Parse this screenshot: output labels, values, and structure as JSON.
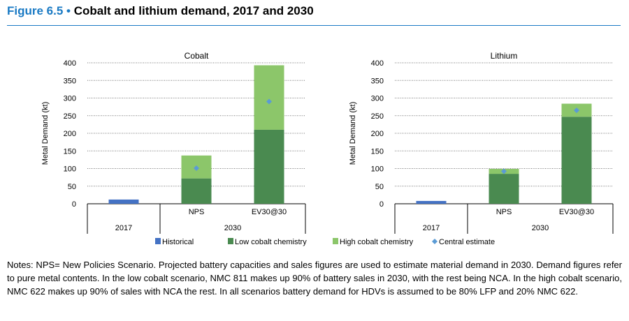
{
  "header": {
    "figure_label": "Figure 6.5",
    "bullet": "•",
    "title": "Cobalt and lithium demand, 2017 and 2030"
  },
  "colors": {
    "historical": "#4472c4",
    "low": "#4a8a50",
    "high": "#8cc66a",
    "central": "#5b9bd5",
    "title_blue": "#1a7ac4"
  },
  "chart_data": [
    {
      "type": "bar",
      "stacked": true,
      "title": "Cobalt",
      "ylabel": "Metal Demand (kt)",
      "ylim": [
        0,
        400
      ],
      "yticks": [
        0,
        50,
        100,
        150,
        200,
        250,
        300,
        350,
        400
      ],
      "grid": "horizontal dotted",
      "categories": [
        "2017",
        "NPS",
        "EV30@30"
      ],
      "groups": [
        {
          "label": "2017",
          "span": 1
        },
        {
          "label": "2030",
          "span": 2
        }
      ],
      "series": [
        {
          "name": "Historical",
          "values": [
            12,
            null,
            null
          ]
        },
        {
          "name": "Low cobalt chemistry",
          "values": [
            null,
            72,
            210
          ]
        },
        {
          "name": "High cobalt chemistry",
          "values": [
            null,
            65,
            183
          ]
        },
        {
          "name": "Central estimate",
          "type": "marker",
          "values": [
            null,
            101,
            290
          ]
        }
      ]
    },
    {
      "type": "bar",
      "stacked": true,
      "title": "Lithium",
      "ylabel": "Metal Demand (kt)",
      "ylim": [
        0,
        400
      ],
      "yticks": [
        0,
        50,
        100,
        150,
        200,
        250,
        300,
        350,
        400
      ],
      "grid": "horizontal dotted",
      "categories": [
        "2017",
        "NPS",
        "EV30@30"
      ],
      "groups": [
        {
          "label": "2017",
          "span": 1
        },
        {
          "label": "2030",
          "span": 2
        }
      ],
      "series": [
        {
          "name": "Historical",
          "values": [
            8,
            null,
            null
          ]
        },
        {
          "name": "Low cobalt chemistry",
          "values": [
            null,
            85,
            247
          ]
        },
        {
          "name": "High cobalt chemistry",
          "values": [
            null,
            14,
            37
          ]
        },
        {
          "name": "Central estimate",
          "type": "marker",
          "values": [
            null,
            92,
            265
          ]
        }
      ]
    }
  ],
  "legend": {
    "placement": "bottom",
    "items": [
      "Historical",
      "Low cobalt chemistry",
      "High cobalt chemistry",
      "Central estimate"
    ]
  },
  "notes": "Notes: NPS= New Policies Scenario. Projected battery capacities and sales figures are used to estimate material demand in 2030. Demand figures refer to pure metal contents. In the low cobalt scenario, NMC 811 makes up 90% of battery sales in 2030, with the rest being NCA. In the high cobalt scenario, NMC 622 makes up 90% of sales with NCA the rest. In all scenarios battery demand for HDVs is assumed to be 80% LFP and 20% NMC 622."
}
